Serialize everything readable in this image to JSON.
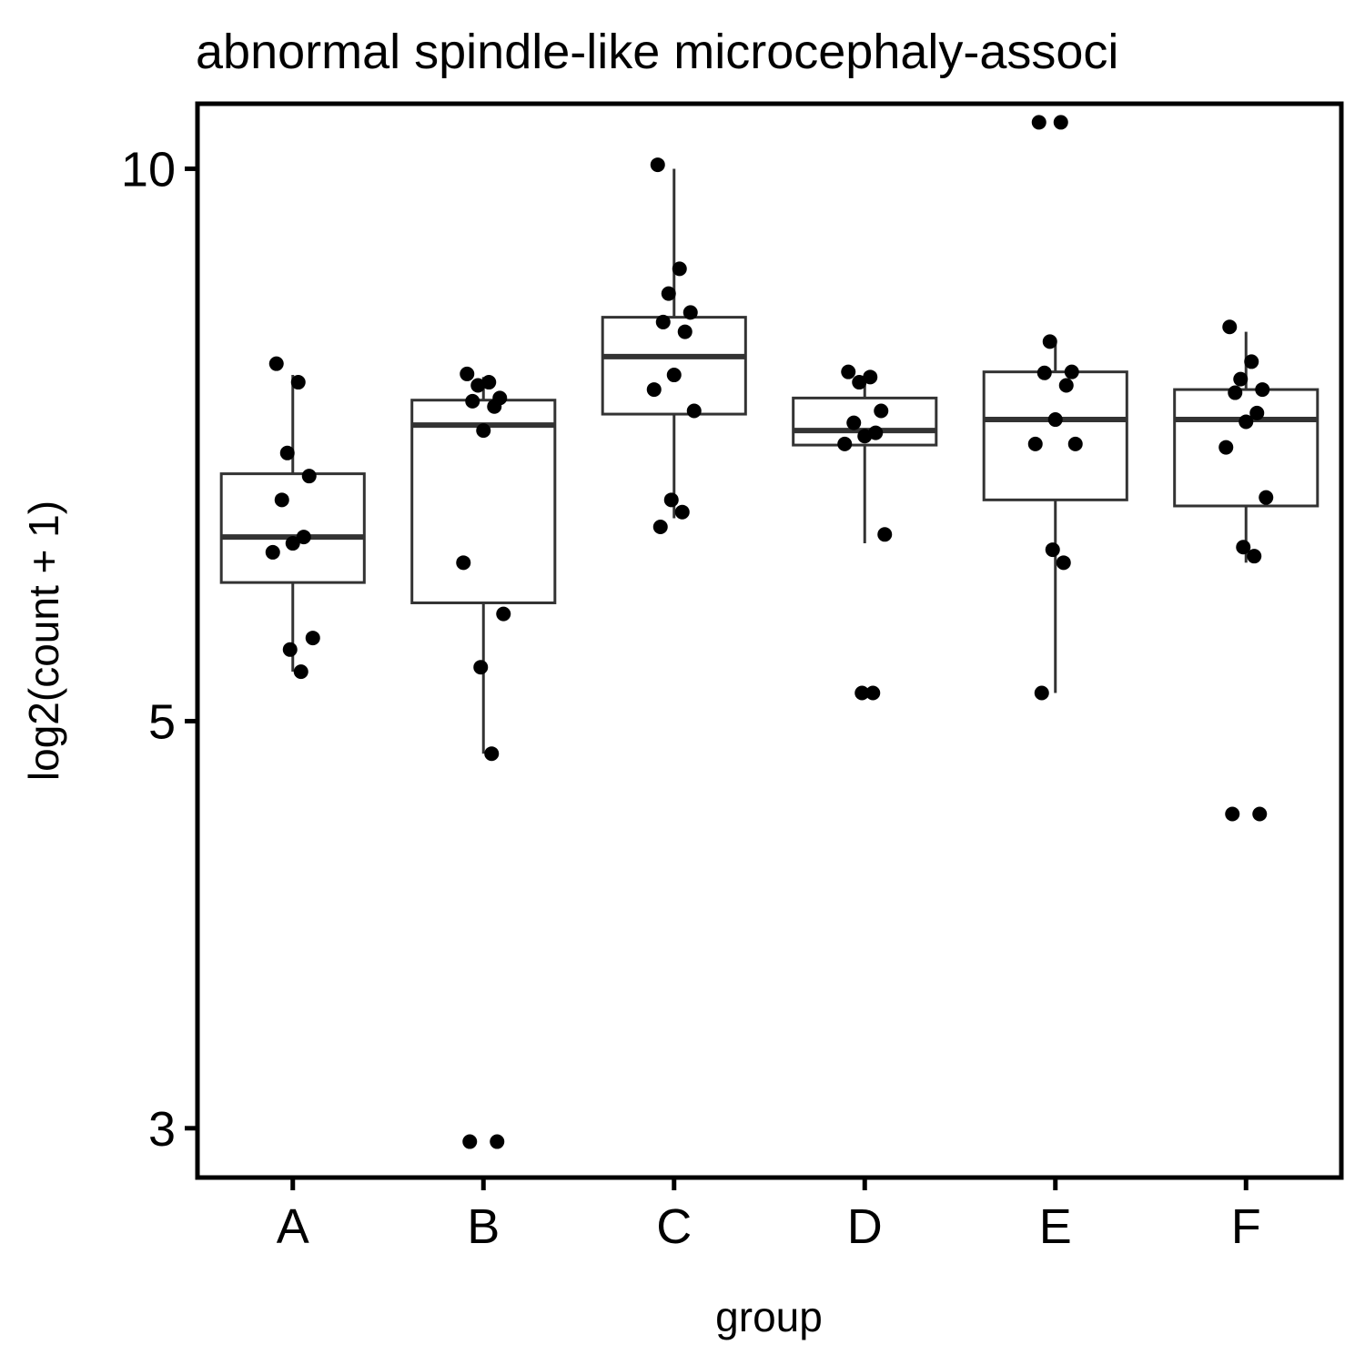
{
  "chart_data": {
    "type": "box",
    "title": "abnormal spindle-like microcephaly-associ",
    "xlabel": "group",
    "ylabel": "log2(count + 1)",
    "y_scale": "log",
    "ylim": [
      2.82,
      10.85
    ],
    "y_ticks": [
      3,
      5,
      10
    ],
    "categories": [
      "A",
      "B",
      "C",
      "D",
      "E",
      "F"
    ],
    "boxes": [
      {
        "group": "A",
        "whisker_low": 5.32,
        "q1": 5.95,
        "median": 6.3,
        "q3": 6.82,
        "whisker_high": 7.72
      },
      {
        "group": "B",
        "whisker_low": 4.8,
        "q1": 5.8,
        "median": 7.25,
        "q3": 7.48,
        "whisker_high": 7.7
      },
      {
        "group": "C",
        "whisker_low": 6.45,
        "q1": 7.35,
        "median": 7.9,
        "q3": 8.3,
        "whisker_high": 10.0
      },
      {
        "group": "D",
        "whisker_low": 6.25,
        "q1": 7.07,
        "median": 7.2,
        "q3": 7.5,
        "whisker_high": 7.7
      },
      {
        "group": "E",
        "whisker_low": 5.18,
        "q1": 6.6,
        "median": 7.3,
        "q3": 7.75,
        "whisker_high": 8.05
      },
      {
        "group": "F",
        "whisker_low": 6.1,
        "q1": 6.55,
        "median": 7.3,
        "q3": 7.58,
        "whisker_high": 8.15
      }
    ],
    "points": [
      {
        "group": "A",
        "values": [
          7.83,
          7.65,
          7.0,
          6.8,
          6.6,
          6.3,
          6.25,
          6.18,
          5.55,
          5.47,
          5.32
        ]
      },
      {
        "group": "B",
        "values": [
          7.73,
          7.65,
          7.62,
          7.5,
          7.47,
          7.42,
          7.2,
          6.1,
          5.72,
          5.35,
          4.8,
          2.95,
          2.95
        ]
      },
      {
        "group": "C",
        "values": [
          10.05,
          8.82,
          8.55,
          8.35,
          8.25,
          8.15,
          7.72,
          7.58,
          7.38,
          6.6,
          6.5,
          6.38
        ]
      },
      {
        "group": "D",
        "values": [
          7.75,
          7.7,
          7.65,
          7.38,
          7.27,
          7.18,
          7.15,
          7.08,
          6.32,
          5.18,
          5.18
        ]
      },
      {
        "group": "E",
        "values": [
          10.6,
          10.6,
          8.05,
          7.75,
          7.74,
          7.62,
          7.3,
          7.08,
          7.08,
          6.2,
          6.1,
          5.18
        ]
      },
      {
        "group": "F",
        "values": [
          8.2,
          7.85,
          7.68,
          7.58,
          7.55,
          7.36,
          7.28,
          7.05,
          6.62,
          6.22,
          6.15,
          4.45,
          4.45
        ]
      }
    ],
    "grid": false,
    "legend": "none",
    "colors": {
      "box": "#333333",
      "point": "#000000",
      "axis": "#000000"
    }
  }
}
